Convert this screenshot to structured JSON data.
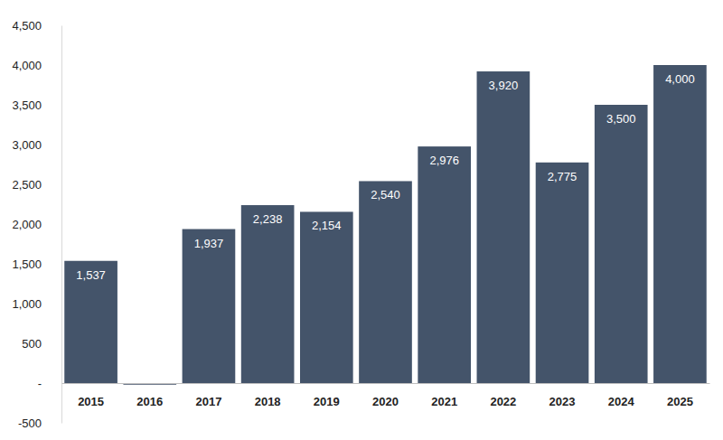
{
  "chart_data": {
    "type": "bar",
    "categories": [
      "2015",
      "2016",
      "2017",
      "2018",
      "2019",
      "2020",
      "2021",
      "2022",
      "2023",
      "2024",
      "2025"
    ],
    "values": [
      1537,
      -20,
      1937,
      2238,
      2154,
      2540,
      2976,
      3920,
      2775,
      3500,
      4000
    ],
    "value_labels": [
      "1,537",
      null,
      "1,937",
      "2,238",
      "2,154",
      "2,540",
      "2,976",
      "3,920",
      "2,775",
      "3,500",
      "4,000"
    ],
    "color": "#44546a",
    "ylim": [
      -500,
      4500
    ],
    "yticks": [
      -500,
      {
        "value": 0,
        "label": "-"
      },
      500,
      {
        "value": 1000,
        "label": "1,000"
      },
      {
        "value": 1500,
        "label": "1,500"
      },
      {
        "value": 2000,
        "label": "2,000"
      },
      {
        "value": 2500,
        "label": "2,500"
      },
      {
        "value": 3000,
        "label": "3,000"
      },
      {
        "value": 3500,
        "label": "3,500"
      },
      {
        "value": 4000,
        "label": "4,000"
      },
      {
        "value": 4500,
        "label": "4,500"
      }
    ],
    "grid": false,
    "data_labels": true
  }
}
